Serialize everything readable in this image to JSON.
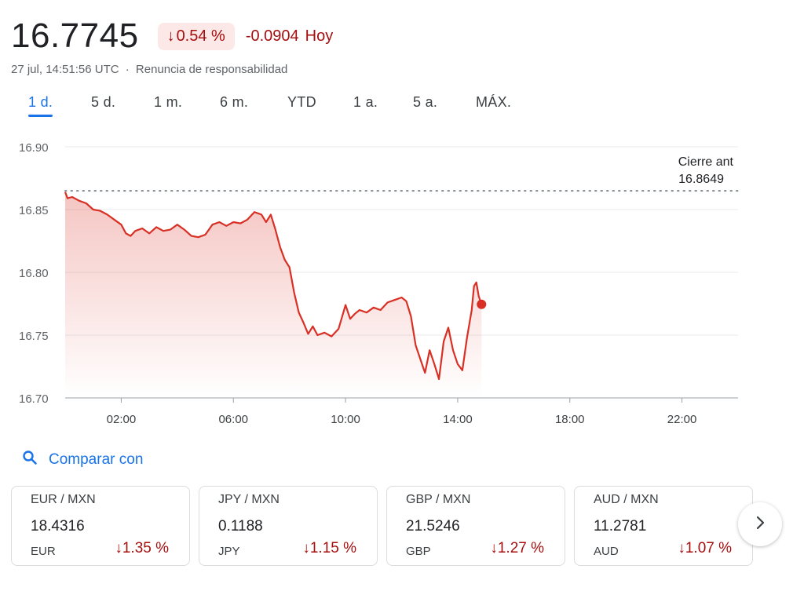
{
  "header": {
    "price": "16.7745",
    "percent_change": "0.54 %",
    "abs_change": "-0.0904",
    "period_label": "Hoy",
    "timestamp": "27 jul, 14:51:56 UTC",
    "separator": "·",
    "disclaimer": "Renuncia de responsabilidad"
  },
  "tabs": [
    {
      "label": "1 d.",
      "active": true
    },
    {
      "label": "5 d.",
      "active": false
    },
    {
      "label": "1 m.",
      "active": false
    },
    {
      "label": "6 m.",
      "active": false
    },
    {
      "label": "YTD",
      "active": false
    },
    {
      "label": "1 a.",
      "active": false
    },
    {
      "label": "5 a.",
      "active": false
    },
    {
      "label": "MÁX.",
      "active": false
    }
  ],
  "colors": {
    "down": "#d93025",
    "down_text": "#a50e0e",
    "accent": "#1a73e8",
    "grid": "#e8eaed"
  },
  "chart_data": {
    "type": "area",
    "ylim": [
      16.7,
      16.9
    ],
    "y_ticks": [
      "16.90",
      "16.85",
      "16.80",
      "16.75",
      "16.70"
    ],
    "x_ticks": [
      "02:00",
      "06:00",
      "10:00",
      "14:00",
      "18:00",
      "22:00"
    ],
    "previous_close": {
      "label": "Cierre ant",
      "value": "16.8649",
      "y": 16.8649
    },
    "series": [
      {
        "points": [
          [
            "00:00",
            16.864
          ],
          [
            "00:05",
            16.859
          ],
          [
            "00:15",
            16.86
          ],
          [
            "00:30",
            16.857
          ],
          [
            "00:45",
            16.855
          ],
          [
            "01:00",
            16.85
          ],
          [
            "01:15",
            16.849
          ],
          [
            "01:30",
            16.846
          ],
          [
            "01:45",
            16.842
          ],
          [
            "02:00",
            16.838
          ],
          [
            "02:10",
            16.831
          ],
          [
            "02:20",
            16.829
          ],
          [
            "02:30",
            16.833
          ],
          [
            "02:45",
            16.835
          ],
          [
            "03:00",
            16.831
          ],
          [
            "03:15",
            16.836
          ],
          [
            "03:30",
            16.833
          ],
          [
            "03:45",
            16.834
          ],
          [
            "04:00",
            16.838
          ],
          [
            "04:15",
            16.834
          ],
          [
            "04:30",
            16.829
          ],
          [
            "04:45",
            16.828
          ],
          [
            "05:00",
            16.83
          ],
          [
            "05:15",
            16.838
          ],
          [
            "05:30",
            16.84
          ],
          [
            "05:45",
            16.837
          ],
          [
            "06:00",
            16.84
          ],
          [
            "06:15",
            16.839
          ],
          [
            "06:30",
            16.842
          ],
          [
            "06:45",
            16.848
          ],
          [
            "07:00",
            16.846
          ],
          [
            "07:10",
            16.84
          ],
          [
            "07:20",
            16.846
          ],
          [
            "07:30",
            16.834
          ],
          [
            "07:40",
            16.82
          ],
          [
            "07:50",
            16.81
          ],
          [
            "08:00",
            16.804
          ],
          [
            "08:10",
            16.784
          ],
          [
            "08:20",
            16.768
          ],
          [
            "08:30",
            16.76
          ],
          [
            "08:40",
            16.751
          ],
          [
            "08:50",
            16.757
          ],
          [
            "09:00",
            16.75
          ],
          [
            "09:15",
            16.752
          ],
          [
            "09:30",
            16.749
          ],
          [
            "09:45",
            16.755
          ],
          [
            "10:00",
            16.774
          ],
          [
            "10:10",
            16.763
          ],
          [
            "10:20",
            16.767
          ],
          [
            "10:30",
            16.77
          ],
          [
            "10:45",
            16.768
          ],
          [
            "11:00",
            16.772
          ],
          [
            "11:15",
            16.77
          ],
          [
            "11:30",
            16.776
          ],
          [
            "11:45",
            16.778
          ],
          [
            "12:00",
            16.78
          ],
          [
            "12:10",
            16.777
          ],
          [
            "12:20",
            16.765
          ],
          [
            "12:30",
            16.742
          ],
          [
            "12:40",
            16.731
          ],
          [
            "12:50",
            16.72
          ],
          [
            "13:00",
            16.738
          ],
          [
            "13:10",
            16.727
          ],
          [
            "13:20",
            16.715
          ],
          [
            "13:30",
            16.745
          ],
          [
            "13:40",
            16.756
          ],
          [
            "13:50",
            16.738
          ],
          [
            "14:00",
            16.727
          ],
          [
            "14:10",
            16.722
          ],
          [
            "14:20",
            16.748
          ],
          [
            "14:30",
            16.77
          ],
          [
            "14:35",
            16.789
          ],
          [
            "14:40",
            16.792
          ],
          [
            "14:45",
            16.781
          ],
          [
            "14:51",
            16.7745
          ]
        ]
      }
    ]
  },
  "compare": {
    "label": "Comparar con",
    "icon": "search-icon"
  },
  "cards": [
    {
      "pair": "EUR / MXN",
      "value": "18.4316",
      "currency": "EUR",
      "change": "1.35 %"
    },
    {
      "pair": "JPY / MXN",
      "value": "0.1188",
      "currency": "JPY",
      "change": "1.15 %"
    },
    {
      "pair": "GBP / MXN",
      "value": "21.5246",
      "currency": "GBP",
      "change": "1.27 %"
    },
    {
      "pair": "AUD / MXN",
      "value": "11.2781",
      "currency": "AUD",
      "change": "1.07 %"
    }
  ],
  "next_button": {
    "icon": "chevron-right-icon"
  }
}
